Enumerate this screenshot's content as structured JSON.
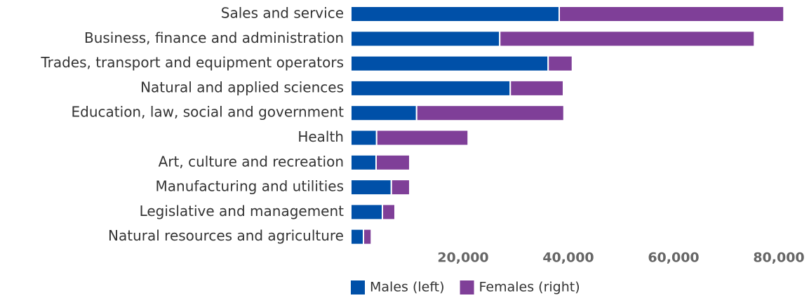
{
  "chart_data": {
    "type": "bar",
    "orientation": "horizontal",
    "stacked": true,
    "categories": [
      "Sales and service",
      "Business, finance and administration",
      "Trades, transport and equipment operators",
      "Natural and applied sciences",
      "Education, law, social and government",
      "Health",
      "Art, culture and recreation",
      "Manufacturing and utilities",
      "Legislative and management",
      "Natural resources and agriculture"
    ],
    "series": [
      {
        "name": "Males (left)",
        "color": "#0050a8",
        "values": [
          39600,
          28300,
          37500,
          30300,
          12500,
          4900,
          4800,
          7700,
          6000,
          2400
        ]
      },
      {
        "name": "Females (right)",
        "color": "#7f3f98",
        "values": [
          42700,
          48400,
          4600,
          10100,
          28000,
          17400,
          6400,
          3500,
          2400,
          1500
        ]
      }
    ],
    "xlim": [
      0,
      87000
    ],
    "xticks": [
      {
        "value": 20000,
        "label": "20,000"
      },
      {
        "value": 40000,
        "label": "40,000"
      },
      {
        "value": 60000,
        "label": "60,000"
      },
      {
        "value": 80000,
        "label": "80,000"
      }
    ],
    "legend": "bottom"
  }
}
